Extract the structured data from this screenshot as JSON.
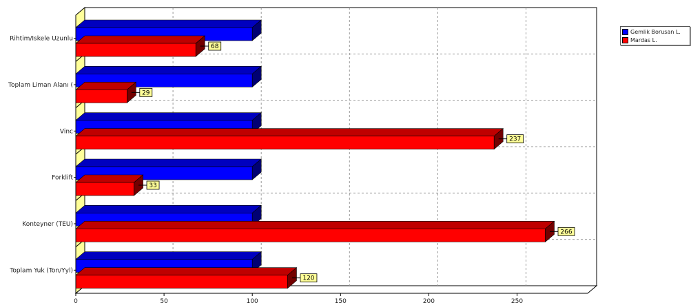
{
  "chart_data": {
    "type": "bar",
    "orientation": "horizontal",
    "style": "3d",
    "categories": [
      "Rihtim/Iskele Uzunlu",
      "Toplam Liman Alanı (",
      "Vinc",
      "Forklift",
      "Konteyner (TEU)",
      "Toplam Yuk (Ton/Yyl)"
    ],
    "series": [
      {
        "name": "Gemlik Borusan L.",
        "color": "#0000ff",
        "values": [
          100,
          100,
          100,
          100,
          100,
          100
        ],
        "show_labels": false
      },
      {
        "name": "Mardas L.",
        "color": "#ff0000",
        "values": [
          68,
          29,
          237,
          33,
          266,
          120
        ],
        "show_labels": true
      }
    ],
    "data_labels": [
      "68",
      "29",
      "237",
      "33",
      "266",
      "120"
    ],
    "xlim": [
      0,
      290
    ],
    "xticks": [
      0,
      50,
      100,
      150,
      200,
      250
    ],
    "xtick_labels": [
      "0",
      "50",
      "100",
      "150",
      "200",
      "250"
    ],
    "grid": true,
    "legend_position": "top-right",
    "wall_color": "#ffff99",
    "label_box_color": "#ffff99"
  }
}
